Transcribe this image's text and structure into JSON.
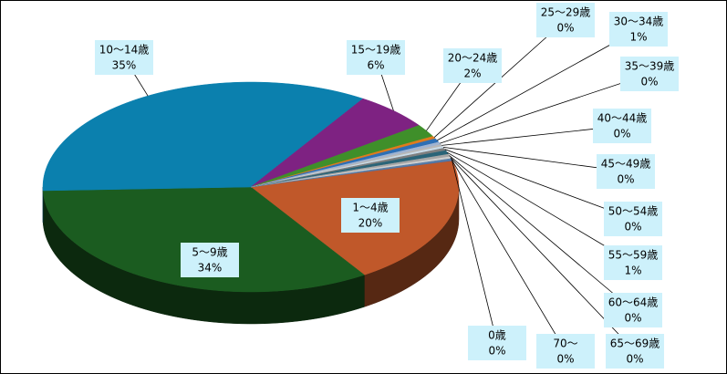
{
  "chart_data": {
    "type": "pie3d",
    "categories": [
      "0歳",
      "1～4歳",
      "5～9歳",
      "10～14歳",
      "15～19歳",
      "20～24歳",
      "25～29歳",
      "30～34歳",
      "35～39歳",
      "40～44歳",
      "45～49歳",
      "50～54歳",
      "55～59歳",
      "60～64歳",
      "65～69歳",
      "70～"
    ],
    "values": [
      0.2,
      20,
      34,
      35,
      6,
      2,
      0.4,
      0.6,
      0.4,
      0.3,
      0.3,
      0.4,
      0.6,
      0.4,
      0.3,
      0.2
    ],
    "value_labels": [
      "0%",
      "20%",
      "34%",
      "35%",
      "6%",
      "2%",
      "0%",
      "1%",
      "0%",
      "0%",
      "0%",
      "0%",
      "1%",
      "0%",
      "0%",
      "0%"
    ],
    "colors": [
      "#4a6fa5",
      "#c0582a",
      "#1b5c20",
      "#0b80ae",
      "#7e2282",
      "#3f8f2a",
      "#e07b1c",
      "#2d6fb5",
      "#9fb3d1",
      "#b7b7b7",
      "#c9dbe8",
      "#7f7f7f",
      "#2a6478",
      "#a6a6a6",
      "#d0d0d0",
      "#5a7fa8"
    ]
  }
}
